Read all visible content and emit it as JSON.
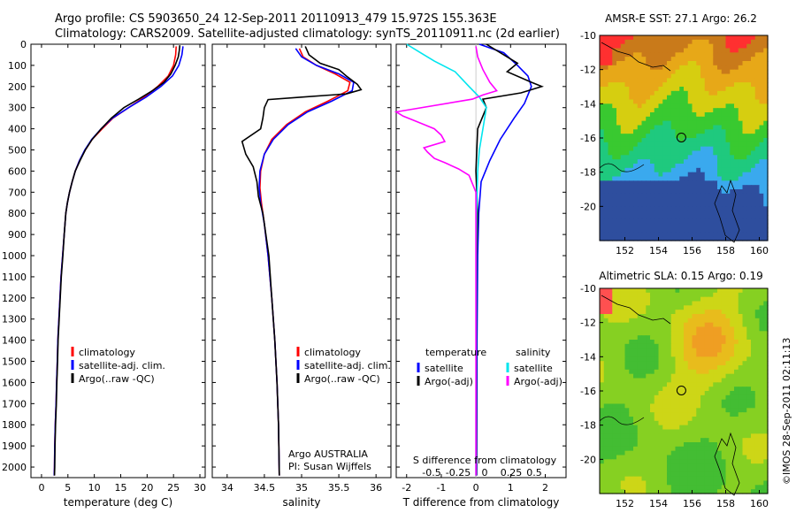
{
  "header": {
    "line1": "Argo profile: CS 5903650_24 12-Sep-2011 20110913_479 15.972S 155.363E",
    "line2": "Climatology: CARS2009. Satellite-adjusted climatology: synTS_20110911.nc (2d earlier)"
  },
  "depth_ticks": [
    "0",
    "100",
    "200",
    "300",
    "400",
    "500",
    "600",
    "700",
    "800",
    "900",
    "1000",
    "1100",
    "1200",
    "1300",
    "1400",
    "1500",
    "1600",
    "1700",
    "1800",
    "1900",
    "2000"
  ],
  "chart_data": [
    {
      "type": "line",
      "id": "temperature",
      "xlabel": "temperature (deg C)",
      "xlim": [
        -2,
        31
      ],
      "ylim": [
        2050,
        0
      ],
      "xticks": [
        "0",
        "5",
        "10",
        "15",
        "20",
        "25",
        "30"
      ],
      "legend": [
        "climatology",
        "satellite-adj. clim.",
        "Argo(..raw -QC)"
      ],
      "series": [
        {
          "name": "climatology",
          "color": "#ff0000",
          "points": [
            [
              25.5,
              10
            ],
            [
              25.4,
              50
            ],
            [
              25.0,
              100
            ],
            [
              24.0,
              150
            ],
            [
              22.0,
              200
            ],
            [
              19.5,
              250
            ],
            [
              16.5,
              300
            ],
            [
              13.5,
              350
            ],
            [
              11.5,
              400
            ],
            [
              9.6,
              450
            ],
            [
              8.3,
              500
            ],
            [
              7.2,
              550
            ],
            [
              6.4,
              600
            ],
            [
              5.8,
              650
            ],
            [
              5.3,
              700
            ],
            [
              4.9,
              750
            ],
            [
              4.6,
              800
            ],
            [
              4.3,
              900
            ],
            [
              4.0,
              1000
            ],
            [
              3.7,
              1100
            ],
            [
              3.5,
              1200
            ],
            [
              3.3,
              1300
            ],
            [
              3.1,
              1400
            ],
            [
              3.0,
              1500
            ],
            [
              2.85,
              1600
            ],
            [
              2.75,
              1700
            ],
            [
              2.6,
              1800
            ],
            [
              2.5,
              1900
            ],
            [
              2.45,
              2000
            ],
            [
              2.4,
              2040
            ]
          ]
        },
        {
          "name": "satellite-adj. clim.",
          "color": "#0000ff",
          "points": [
            [
              26.8,
              10
            ],
            [
              26.6,
              50
            ],
            [
              26.0,
              100
            ],
            [
              24.8,
              150
            ],
            [
              22.6,
              200
            ],
            [
              19.8,
              250
            ],
            [
              16.5,
              300
            ],
            [
              13.4,
              350
            ],
            [
              11.3,
              400
            ],
            [
              9.5,
              450
            ],
            [
              8.2,
              500
            ],
            [
              7.2,
              550
            ],
            [
              6.4,
              600
            ],
            [
              5.8,
              650
            ],
            [
              5.3,
              700
            ],
            [
              4.9,
              750
            ],
            [
              4.6,
              800
            ],
            [
              4.3,
              900
            ],
            [
              4.0,
              1000
            ],
            [
              3.7,
              1100
            ],
            [
              3.5,
              1200
            ],
            [
              3.3,
              1300
            ],
            [
              3.1,
              1400
            ],
            [
              3.0,
              1500
            ],
            [
              2.85,
              1600
            ],
            [
              2.75,
              1700
            ],
            [
              2.6,
              1800
            ],
            [
              2.5,
              1900
            ],
            [
              2.45,
              2000
            ],
            [
              2.4,
              2040
            ]
          ]
        },
        {
          "name": "Argo(..raw -QC)",
          "color": "#000000",
          "points": [
            [
              26.2,
              5
            ],
            [
              26.1,
              30
            ],
            [
              25.9,
              60
            ],
            [
              25.3,
              100
            ],
            [
              24.5,
              140
            ],
            [
              23.2,
              180
            ],
            [
              21.0,
              220
            ],
            [
              18.4,
              260
            ],
            [
              15.6,
              300
            ],
            [
              13.2,
              350
            ],
            [
              11.3,
              400
            ],
            [
              9.6,
              450
            ],
            [
              8.3,
              500
            ],
            [
              7.3,
              550
            ],
            [
              6.4,
              600
            ],
            [
              5.8,
              650
            ],
            [
              5.3,
              700
            ],
            [
              4.9,
              750
            ],
            [
              4.6,
              800
            ],
            [
              4.3,
              900
            ],
            [
              4.05,
              1000
            ],
            [
              3.75,
              1100
            ],
            [
              3.55,
              1200
            ],
            [
              3.35,
              1300
            ],
            [
              3.15,
              1400
            ],
            [
              3.05,
              1500
            ],
            [
              2.9,
              1600
            ],
            [
              2.8,
              1700
            ],
            [
              2.65,
              1800
            ],
            [
              2.55,
              1900
            ],
            [
              2.5,
              2000
            ],
            [
              2.45,
              2040
            ]
          ]
        }
      ]
    },
    {
      "type": "line",
      "id": "salinity",
      "xlabel": "salinity",
      "xlim": [
        33.8,
        36.2
      ],
      "ylim": [
        2050,
        0
      ],
      "xticks": [
        "34",
        "34.5",
        "35",
        "35.5",
        "36"
      ],
      "legend": [
        "climatology",
        "satellite-adj. clim.",
        "Argo(..raw -QC)"
      ],
      "notes": [
        "Argo AUSTRALIA",
        "PI: Susan Wijffels"
      ],
      "series": [
        {
          "name": "climatology",
          "color": "#ff0000",
          "points": [
            [
              34.97,
              20
            ],
            [
              35.02,
              60
            ],
            [
              35.2,
              100
            ],
            [
              35.45,
              140
            ],
            [
              35.65,
              180
            ],
            [
              35.62,
              220
            ],
            [
              35.35,
              270
            ],
            [
              35.05,
              320
            ],
            [
              34.8,
              380
            ],
            [
              34.6,
              450
            ],
            [
              34.5,
              520
            ],
            [
              34.45,
              600
            ],
            [
              34.44,
              680
            ],
            [
              34.46,
              750
            ],
            [
              34.5,
              850
            ],
            [
              34.55,
              1000
            ],
            [
              34.6,
              1200
            ],
            [
              34.64,
              1400
            ],
            [
              34.67,
              1600
            ],
            [
              34.69,
              1800
            ],
            [
              34.7,
              2040
            ]
          ]
        },
        {
          "name": "satellite-adj. clim.",
          "color": "#0000ff",
          "points": [
            [
              34.92,
              20
            ],
            [
              35.0,
              60
            ],
            [
              35.2,
              100
            ],
            [
              35.5,
              140
            ],
            [
              35.7,
              180
            ],
            [
              35.68,
              220
            ],
            [
              35.4,
              270
            ],
            [
              35.08,
              320
            ],
            [
              34.82,
              380
            ],
            [
              34.62,
              450
            ],
            [
              34.5,
              520
            ],
            [
              34.44,
              600
            ],
            [
              34.43,
              680
            ],
            [
              34.45,
              750
            ],
            [
              34.5,
              850
            ],
            [
              34.55,
              1000
            ],
            [
              34.6,
              1200
            ],
            [
              34.64,
              1400
            ],
            [
              34.67,
              1600
            ],
            [
              34.69,
              1800
            ],
            [
              34.7,
              2040
            ]
          ]
        },
        {
          "name": "Argo(..raw -QC)",
          "color": "#000000",
          "points": [
            [
              35.05,
              10
            ],
            [
              35.1,
              50
            ],
            [
              35.25,
              90
            ],
            [
              35.5,
              120
            ],
            [
              35.6,
              150
            ],
            [
              35.75,
              190
            ],
            [
              35.8,
              215
            ],
            [
              35.6,
              235
            ],
            [
              35.0,
              250
            ],
            [
              34.55,
              262
            ],
            [
              34.5,
              300
            ],
            [
              34.48,
              350
            ],
            [
              34.45,
              400
            ],
            [
              34.2,
              460
            ],
            [
              34.25,
              520
            ],
            [
              34.35,
              580
            ],
            [
              34.4,
              650
            ],
            [
              34.42,
              720
            ],
            [
              34.48,
              800
            ],
            [
              34.52,
              900
            ],
            [
              34.56,
              1000
            ],
            [
              34.6,
              1200
            ],
            [
              34.64,
              1400
            ],
            [
              34.67,
              1600
            ],
            [
              34.69,
              1800
            ],
            [
              34.7,
              2040
            ]
          ]
        }
      ]
    },
    {
      "type": "line",
      "id": "difference",
      "xlabel": "T difference from climatology",
      "xlim": [
        -2.3,
        2.6
      ],
      "ylim": [
        2050,
        0
      ],
      "xticks": [
        "-2",
        "-1",
        "0",
        "1",
        "2"
      ],
      "top_label": "S difference from climatology",
      "top_ticks": [
        "-0.5",
        "-0.25",
        "0",
        "0.25",
        "0.5"
      ],
      "legend_headers": [
        "temperature",
        "salinity"
      ],
      "legend": [
        "satellite",
        "Argo(-adj)",
        "satellite",
        "Argo(-adj)"
      ],
      "series": [
        {
          "name": "temperature satellite",
          "color": "#0000ff",
          "points": [
            [
              0.1,
              0
            ],
            [
              0.8,
              40
            ],
            [
              1.2,
              100
            ],
            [
              1.5,
              150
            ],
            [
              1.6,
              200
            ],
            [
              1.4,
              280
            ],
            [
              1.1,
              350
            ],
            [
              0.7,
              450
            ],
            [
              0.4,
              550
            ],
            [
              0.15,
              650
            ],
            [
              0.08,
              800
            ],
            [
              0.05,
              1000
            ],
            [
              0.03,
              1400
            ],
            [
              0.02,
              2040
            ]
          ]
        },
        {
          "name": "temperature Argo(-adj)",
          "color": "#000000",
          "points": [
            [
              0.3,
              0
            ],
            [
              0.9,
              60
            ],
            [
              1.2,
              90
            ],
            [
              0.9,
              130
            ],
            [
              1.6,
              180
            ],
            [
              1.9,
              200
            ],
            [
              1.3,
              230
            ],
            [
              0.2,
              260
            ],
            [
              0.3,
              300
            ],
            [
              0.05,
              400
            ],
            [
              0.0,
              600
            ],
            [
              0.05,
              800
            ],
            [
              0.02,
              1000
            ],
            [
              0.01,
              1400
            ],
            [
              0.01,
              2040
            ]
          ]
        },
        {
          "name": "salinity satellite",
          "color": "#00e5ee",
          "points": [
            [
              -2.0,
              0
            ],
            [
              -1.6,
              40
            ],
            [
              -1.2,
              80
            ],
            [
              -0.6,
              130
            ],
            [
              -0.2,
              200
            ],
            [
              0.1,
              250
            ],
            [
              0.3,
              300
            ],
            [
              0.2,
              400
            ],
            [
              0.1,
              500
            ],
            [
              0.05,
              600
            ],
            [
              0.02,
              800
            ],
            [
              0.01,
              1000
            ],
            [
              0.0,
              2040
            ]
          ]
        },
        {
          "name": "salinity Argo(-adj)",
          "color": "#ff00ff",
          "points": [
            [
              0.0,
              10
            ],
            [
              0.05,
              60
            ],
            [
              0.2,
              120
            ],
            [
              0.4,
              180
            ],
            [
              0.6,
              220
            ],
            [
              0.2,
              240
            ],
            [
              -0.1,
              260
            ],
            [
              -2.3,
              320
            ],
            [
              -2.1,
              340
            ],
            [
              -1.8,
              360
            ],
            [
              -1.5,
              380
            ],
            [
              -1.2,
              400
            ],
            [
              -1.0,
              430
            ],
            [
              -0.9,
              460
            ],
            [
              -1.5,
              490
            ],
            [
              -1.4,
              510
            ],
            [
              -1.2,
              540
            ],
            [
              -0.9,
              560
            ],
            [
              -0.5,
              590
            ],
            [
              -0.2,
              620
            ],
            [
              0.0,
              700
            ],
            [
              0.0,
              2040
            ]
          ]
        }
      ]
    },
    {
      "type": "heatmap",
      "id": "sst_map",
      "title": "AMSR-E SST: 27.1 Argo: 26.2",
      "xlim": [
        150.5,
        160.5
      ],
      "ylim": [
        -22,
        -10
      ],
      "xticks": [
        "152",
        "154",
        "156",
        "158",
        "160"
      ],
      "yticks": [
        "-10",
        "-12",
        "-14",
        "-16",
        "-18",
        "-20"
      ],
      "argo_position": [
        155.363,
        -15.972
      ],
      "colors": [
        "#2e4e9e",
        "#3aa9ee",
        "#1fc97e",
        "#39c930",
        "#d6ce10",
        "#e7a818",
        "#c97a1a",
        "#ff3030"
      ]
    },
    {
      "type": "heatmap",
      "id": "sla_map",
      "title": "Altimetric SLA: 0.15 Argo: 0.19",
      "xlim": [
        150.5,
        160.5
      ],
      "ylim": [
        -22,
        -10
      ],
      "xticks": [
        "152",
        "154",
        "156",
        "158",
        "160"
      ],
      "yticks": [
        "-10",
        "-12",
        "-14",
        "-16",
        "-18",
        "-20"
      ],
      "argo_position": [
        155.363,
        -15.972
      ],
      "colors": [
        "#43bd33",
        "#86d022",
        "#cdd617",
        "#e8bc1c",
        "#ef9e23",
        "#ff5050"
      ]
    }
  ],
  "footer": {
    "timestamp": "©IMOS 28-Sep-2011 02:11:13"
  }
}
